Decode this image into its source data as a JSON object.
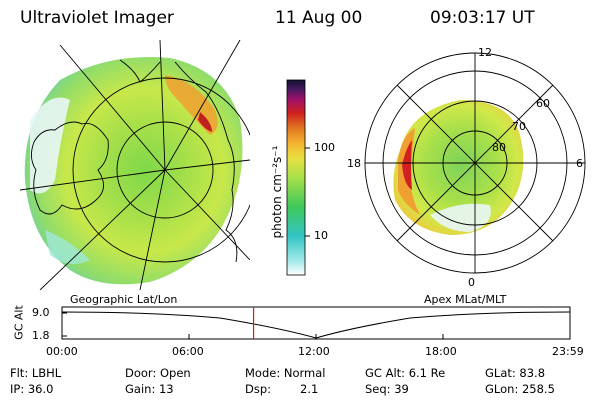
{
  "header": {
    "instrument": "Ultraviolet Imager",
    "date": "11 Aug 00",
    "time": "09:03:17 UT"
  },
  "colorbar": {
    "unit_label": "photon cm⁻²s⁻¹",
    "ticks": [
      "100",
      "10"
    ],
    "scale": "log"
  },
  "geo_panel": {
    "label": "Geographic Lat/Lon"
  },
  "apex_panel": {
    "label": "Apex MLat/MLT",
    "mlt_labels": {
      "top": "12",
      "left": "18",
      "right": "6",
      "bottom": "0"
    },
    "lat_labels": [
      "60",
      "70",
      "80"
    ]
  },
  "orbit_plot": {
    "ylabel": "GC Alt",
    "yticks": [
      "9.0",
      "1.8"
    ],
    "xticks": [
      "00:00",
      "06:00",
      "12:00",
      "18:00",
      "23:59"
    ],
    "current_time_hours": 9.05
  },
  "info": {
    "flt": "Flt: LBHL",
    "ip": "IP: 36.0",
    "door": "Door: Open",
    "gain": "Gain: 13",
    "mode": "Mode: Normal",
    "dsp_label": "Dsp:",
    "dsp_value": "2.1",
    "gcalt": "GC Alt: 6.1 Re",
    "seq": "Seq: 39",
    "glat": "GLat: 83.8",
    "glon": "GLon: 258.5"
  },
  "colors": {
    "colorbar_stops": [
      "#ffffff",
      "#9be8e8",
      "#33c4c4",
      "#3fc85a",
      "#a8e04a",
      "#e8e040",
      "#f5b030",
      "#e07020",
      "#d02020",
      "#a0106a",
      "#4a1a60",
      "#101030"
    ],
    "current_time_marker": "#d02020"
  }
}
